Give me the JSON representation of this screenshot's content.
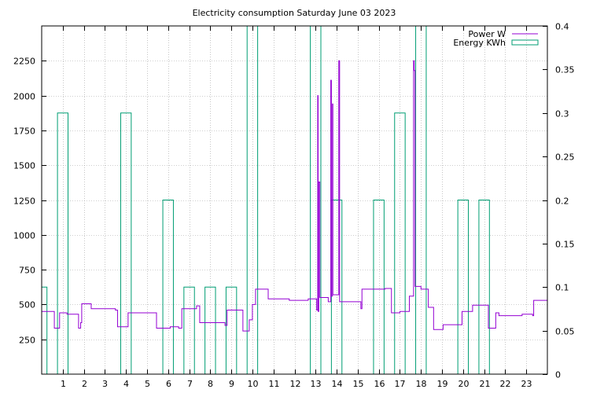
{
  "chart_data": {
    "type": "line",
    "title": "Electricity consumption Saturday June 03 2023",
    "grid": true,
    "legend_position": "top-right",
    "colors": {
      "power": "#9400d3",
      "energy": "#009e73",
      "grid": "#a0a0a0",
      "axis": "#000000"
    },
    "x": {
      "range": [
        0,
        24
      ],
      "ticks": [
        1,
        2,
        3,
        4,
        5,
        6,
        7,
        8,
        9,
        10,
        11,
        12,
        13,
        14,
        15,
        16,
        17,
        18,
        19,
        20,
        21,
        22,
        23
      ],
      "tick_labels": [
        "1",
        "2",
        "3",
        "4",
        "5",
        "6",
        "7",
        "8",
        "9",
        "10",
        "11",
        "12",
        "13",
        "14",
        "15",
        "16",
        "17",
        "18",
        "19",
        "20",
        "21",
        "22",
        "23"
      ]
    },
    "y_left": {
      "range": [
        0,
        2500
      ],
      "ticks": [
        250,
        500,
        750,
        1000,
        1250,
        1500,
        1750,
        2000,
        2250
      ],
      "tick_labels": [
        "250",
        "500",
        "750",
        "1000",
        "1250",
        "1500",
        "1750",
        "2000",
        "2250"
      ]
    },
    "y_right": {
      "range": [
        0,
        0.4
      ],
      "ticks": [
        0,
        0.05,
        0.1,
        0.15,
        0.2,
        0.25,
        0.3,
        0.35,
        0.4
      ],
      "tick_labels": [
        "0",
        "0.05",
        "0.1",
        "0.15",
        "0.2",
        "0.25",
        "0.3",
        "0.35",
        "0.4"
      ]
    },
    "series": [
      {
        "name": "Power W",
        "axis": "left",
        "style": "steps",
        "points": [
          [
            0,
            450
          ],
          [
            0.6,
            330
          ],
          [
            0.85,
            440
          ],
          [
            1.2,
            430
          ],
          [
            1.75,
            330
          ],
          [
            1.85,
            370
          ],
          [
            1.9,
            505
          ],
          [
            2.35,
            470
          ],
          [
            3.5,
            460
          ],
          [
            3.6,
            340
          ],
          [
            4.1,
            440
          ],
          [
            5.45,
            330
          ],
          [
            6.1,
            340
          ],
          [
            6.5,
            330
          ],
          [
            6.65,
            470
          ],
          [
            7.35,
            490
          ],
          [
            7.5,
            370
          ],
          [
            8.7,
            350
          ],
          [
            8.8,
            460
          ],
          [
            9.55,
            310
          ],
          [
            9.85,
            390
          ],
          [
            10.0,
            500
          ],
          [
            10.15,
            610
          ],
          [
            10.75,
            540
          ],
          [
            11.75,
            530
          ],
          [
            12.65,
            540
          ],
          [
            13.05,
            460
          ],
          [
            13.1,
            2000
          ],
          [
            13.12,
            450
          ],
          [
            13.15,
            1380
          ],
          [
            13.2,
            550
          ],
          [
            13.6,
            520
          ],
          [
            13.72,
            2110
          ],
          [
            13.75,
            560
          ],
          [
            13.8,
            1940
          ],
          [
            13.82,
            570
          ],
          [
            14.1,
            2250
          ],
          [
            14.14,
            520
          ],
          [
            14.4,
            520
          ],
          [
            15.15,
            470
          ],
          [
            15.2,
            610
          ],
          [
            15.9,
            610
          ],
          [
            16.3,
            615
          ],
          [
            16.6,
            440
          ],
          [
            17.0,
            450
          ],
          [
            17.45,
            560
          ],
          [
            17.65,
            2250
          ],
          [
            17.68,
            2180
          ],
          [
            17.72,
            630
          ],
          [
            18.0,
            610
          ],
          [
            18.35,
            480
          ],
          [
            18.6,
            320
          ],
          [
            19.05,
            355
          ],
          [
            19.95,
            450
          ],
          [
            20.45,
            495
          ],
          [
            21.2,
            330
          ],
          [
            21.55,
            440
          ],
          [
            21.7,
            420
          ],
          [
            22.8,
            430
          ],
          [
            23.3,
            420
          ],
          [
            23.35,
            530
          ],
          [
            24,
            530
          ]
        ]
      },
      {
        "name": "Energy KWh",
        "axis": "right",
        "style": "steps",
        "points": [
          [
            0,
            0.1
          ],
          [
            0.25,
            0
          ],
          [
            0.75,
            0.3
          ],
          [
            1.25,
            0
          ],
          [
            3.75,
            0.3
          ],
          [
            4.25,
            0
          ],
          [
            5.75,
            0.2
          ],
          [
            6.25,
            0
          ],
          [
            6.75,
            0.1
          ],
          [
            7.25,
            0
          ],
          [
            7.75,
            0.1
          ],
          [
            8.25,
            0
          ],
          [
            8.75,
            0.1
          ],
          [
            9.25,
            0
          ],
          [
            9.75,
            0.4
          ],
          [
            10.25,
            0
          ],
          [
            12.75,
            0.4
          ],
          [
            13.25,
            0
          ],
          [
            13.75,
            0.2
          ],
          [
            14.25,
            0
          ],
          [
            15.75,
            0.2
          ],
          [
            16.25,
            0
          ],
          [
            16.75,
            0.3
          ],
          [
            17.25,
            0
          ],
          [
            17.75,
            0.4
          ],
          [
            18.25,
            0
          ],
          [
            19.75,
            0.2
          ],
          [
            20.25,
            0
          ],
          [
            20.75,
            0.2
          ],
          [
            21.25,
            0
          ],
          [
            24,
            0
          ]
        ]
      }
    ]
  }
}
